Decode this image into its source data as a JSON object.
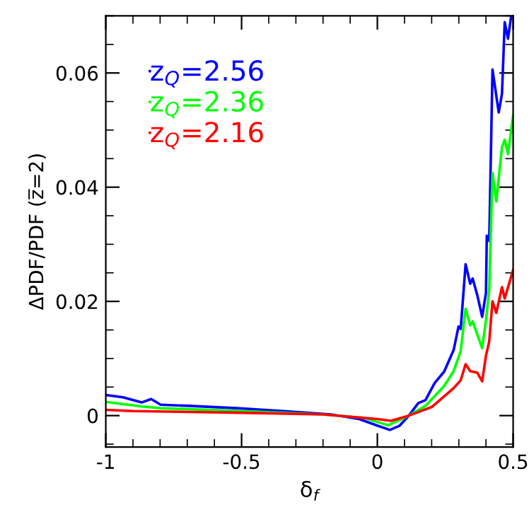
{
  "chart_data": {
    "type": "line",
    "xlabel": "δ$_{f}$",
    "ylabel": "ΔPDF/PDF (z̅=2)",
    "xlim": [
      -1,
      0.5
    ],
    "ylim": [
      -0.0055,
      0.07
    ],
    "xticks": [
      -1,
      -0.5,
      0,
      0.5
    ],
    "yticks": [
      0,
      0.02,
      0.04,
      0.06
    ],
    "grid": false,
    "legend": "top left",
    "marker": "none",
    "line_style": "solid",
    "series": [
      {
        "name": "z$_{Q}$=2.56",
        "color": "#0000ff",
        "x": [
          -1,
          -0.937,
          -0.868,
          -0.833,
          -0.798,
          -0.694,
          -0.52,
          -0.345,
          -0.171,
          -0.067,
          0.003,
          0.046,
          0.081,
          0.116,
          0.151,
          0.177,
          0.211,
          0.246,
          0.281,
          0.299,
          0.307,
          0.325,
          0.342,
          0.351,
          0.368,
          0.386,
          0.4,
          0.403,
          0.412,
          0.424,
          0.447,
          0.459,
          0.469,
          0.481,
          0.493
        ],
        "values": [
          0.0036,
          0.0032,
          0.0023,
          0.0029,
          0.0019,
          0.0017,
          0.0013,
          0.0008,
          0.0002,
          -0.0006,
          -0.0018,
          -0.0025,
          -0.0018,
          0,
          0.0022,
          0.0027,
          0.0057,
          0.0077,
          0.0115,
          0.0156,
          0.0152,
          0.0265,
          0.0231,
          0.024,
          0.0211,
          0.0173,
          0.0215,
          0.0315,
          0.0306,
          0.0606,
          0.0531,
          0.0564,
          0.0689,
          0.066,
          0.07
        ]
      },
      {
        "name": "z$_{Q}$=2.36",
        "color": "#00ff00",
        "x": [
          -1,
          -0.868,
          -0.8,
          -0.5,
          -0.2,
          -0.05,
          0.04,
          0.116,
          0.177,
          0.246,
          0.281,
          0.307,
          0.325,
          0.342,
          0.351,
          0.386,
          0.4,
          0.412,
          0.424,
          0.438,
          0.459,
          0.469,
          0.481,
          0.5
        ],
        "values": [
          0.0024,
          0.0016,
          0.0013,
          0.0008,
          0.0002,
          -0.0004,
          -0.0017,
          0,
          0.0017,
          0.0052,
          0.0078,
          0.0113,
          0.0187,
          0.0158,
          0.0165,
          0.0118,
          0.0167,
          0.022,
          0.0425,
          0.0375,
          0.047,
          0.0483,
          0.0458,
          0.0525
        ]
      },
      {
        "name": "z$_{Q}$=2.16",
        "color": "#ff0000",
        "x": [
          -1,
          -0.9,
          -0.5,
          -0.2,
          0,
          0.05,
          0.116,
          0.2,
          0.281,
          0.307,
          0.325,
          0.342,
          0.368,
          0.386,
          0.4,
          0.412,
          0.424,
          0.438,
          0.459,
          0.469,
          0.5
        ],
        "values": [
          0.001,
          0.0008,
          0.0005,
          0.0002,
          -0.0006,
          -0.0009,
          0,
          0.0015,
          0.0048,
          0.0062,
          0.009,
          0.0078,
          0.0075,
          0.006,
          0.0105,
          0.013,
          0.02,
          0.018,
          0.0225,
          0.0205,
          0.0255
        ]
      }
    ]
  }
}
